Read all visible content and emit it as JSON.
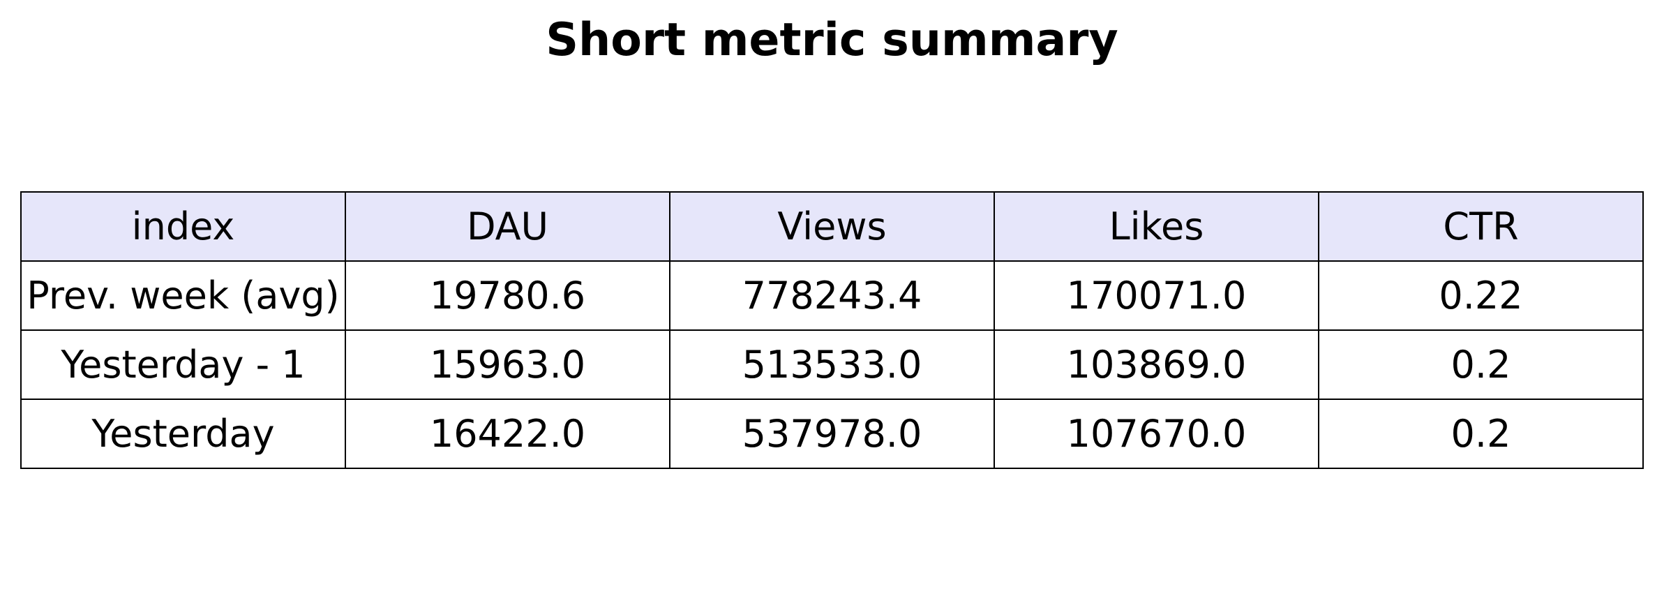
{
  "chart_data": {
    "type": "table",
    "title": "Short metric summary",
    "columns": [
      "index",
      "DAU",
      "Views",
      "Likes",
      "CTR"
    ],
    "rows": [
      [
        "Prev. week (avg)",
        "19780.6",
        "778243.4",
        "170071.0",
        "0.22"
      ],
      [
        "Yesterday - 1",
        "15963.0",
        "513533.0",
        "103869.0",
        "0.2"
      ],
      [
        "Yesterday",
        "16422.0",
        "537978.0",
        "107670.0",
        "0.2"
      ]
    ],
    "header_color": "#e6e6fa",
    "border_color": "#000000"
  }
}
